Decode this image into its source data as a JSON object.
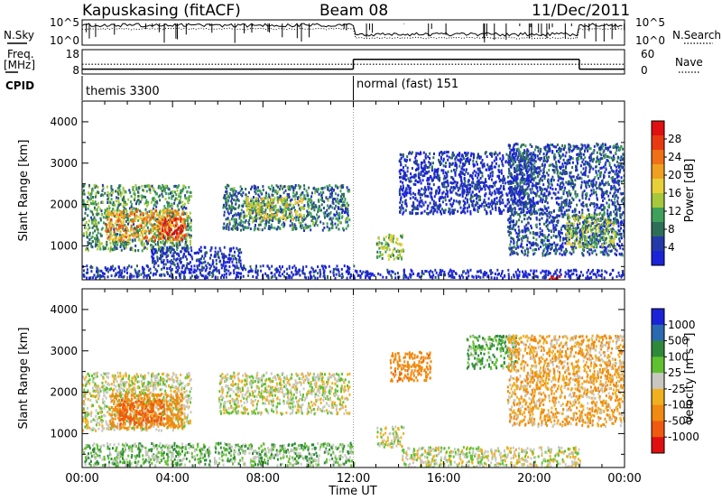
{
  "header": {
    "station": "Kapuskasing (fitACF)",
    "beam": "Beam 08",
    "date": "11/Dec/2011"
  },
  "noise_panel": {
    "left_label": "N.Sky",
    "right_label": "N.Search",
    "left_ticks": [
      "10^5",
      "10^0"
    ],
    "right_ticks": [
      "10^5",
      "10^0"
    ]
  },
  "freq_panel": {
    "left_label_1": "Freq.",
    "left_label_2": "[MHz]",
    "left_ticks": [
      "18",
      "8"
    ],
    "right_ticks": [
      "60",
      "0"
    ],
    "right_label": "Nave",
    "freq_mhz_segments": [
      {
        "start_h": 0,
        "end_h": 12,
        "value": 10.0
      },
      {
        "start_h": 12,
        "end_h": 22,
        "value": 14.0
      },
      {
        "start_h": 22,
        "end_h": 24,
        "value": 10.0
      }
    ],
    "nave_segments": [
      {
        "start_h": 0,
        "end_h": 24,
        "value": 24
      }
    ]
  },
  "cpid": {
    "label": "CPID",
    "segments": [
      {
        "start_h": 0,
        "text": "themis 3300"
      },
      {
        "start_h": 12,
        "text": "normal (fast) 151"
      }
    ]
  },
  "axes": {
    "xlabel": "Time UT",
    "x_ticks": [
      "00:00",
      "04:00",
      "08:00",
      "12:00",
      "16:00",
      "20:00",
      "00:00"
    ],
    "xlim_hours": [
      0,
      24
    ],
    "ylabel": "Slant Range [km]",
    "y_ticks": [
      "1000",
      "2000",
      "3000",
      "4000"
    ],
    "ylim_km": [
      180,
      4500
    ]
  },
  "chart_data": [
    {
      "type": "heatmap",
      "panel": "power",
      "xlabel": "Time UT",
      "ylabel": "Slant Range [km]",
      "xlim": [
        0,
        24
      ],
      "ylim": [
        180,
        4500
      ],
      "colorbar": {
        "label": "Power [dB]",
        "ticks": [
          "4",
          "8",
          "12",
          "16",
          "20",
          "24",
          "28"
        ],
        "colors": [
          "#1a23d8",
          "#243aa8",
          "#2e6e58",
          "#3ea05a",
          "#a6c83a",
          "#e8d038",
          "#f0a020",
          "#f07018",
          "#e83a10",
          "#e01010"
        ]
      },
      "regions": [
        {
          "t0": 0.0,
          "t1": 4.8,
          "r0": 900,
          "r1": 2500,
          "value": 12
        },
        {
          "t0": 1.0,
          "t1": 4.6,
          "r0": 1150,
          "r1": 1900,
          "value": 20
        },
        {
          "t0": 3.4,
          "t1": 4.4,
          "r0": 1150,
          "r1": 1700,
          "value": 26
        },
        {
          "t0": 6.2,
          "t1": 11.8,
          "r0": 1400,
          "r1": 2500,
          "value": 10
        },
        {
          "t0": 7.2,
          "t1": 9.8,
          "r0": 1650,
          "r1": 2200,
          "value": 16
        },
        {
          "t0": 0.0,
          "t1": 12.0,
          "r0": 250,
          "r1": 550,
          "value": 6
        },
        {
          "t0": 3.0,
          "t1": 7.0,
          "r0": 550,
          "r1": 1000,
          "value": 6
        },
        {
          "t0": 13.0,
          "t1": 14.2,
          "r0": 700,
          "r1": 1300,
          "value": 14
        },
        {
          "t0": 14.0,
          "t1": 20.0,
          "r0": 1800,
          "r1": 3300,
          "value": 6
        },
        {
          "t0": 18.8,
          "t1": 24.0,
          "r0": 800,
          "r1": 3500,
          "value": 8
        },
        {
          "t0": 21.4,
          "t1": 23.6,
          "r0": 1000,
          "r1": 1800,
          "value": 14
        },
        {
          "t0": 12.0,
          "t1": 24.0,
          "r0": 250,
          "r1": 450,
          "value": 5
        },
        {
          "t0": 20.6,
          "t1": 21.2,
          "r0": 200,
          "r1": 300,
          "value": 28
        }
      ]
    },
    {
      "type": "heatmap",
      "panel": "velocity",
      "xlabel": "Time UT",
      "ylabel": "Slant Range [km]",
      "xlim": [
        0,
        24
      ],
      "ylim": [
        180,
        4500
      ],
      "colorbar": {
        "label": "Velocity [m s⁻¹]",
        "ticks": [
          "1000",
          "500",
          "100",
          "25",
          "-25",
          "-100",
          "-500",
          "-1000"
        ],
        "colors": [
          "#1a23d8",
          "#2a6ab0",
          "#2e8a3a",
          "#60c030",
          "#c8c8c0",
          "#f0b020",
          "#f08a10",
          "#f05a10",
          "#e01010"
        ]
      },
      "regions": [
        {
          "t0": 0.0,
          "t1": 4.8,
          "r0": 1100,
          "r1": 2500,
          "value": 0
        },
        {
          "t0": 1.2,
          "t1": 4.4,
          "r0": 1150,
          "r1": 2000,
          "value": -150
        },
        {
          "t0": 1.6,
          "t1": 3.6,
          "r0": 1250,
          "r1": 1850,
          "value": -300
        },
        {
          "t0": 6.0,
          "t1": 11.8,
          "r0": 1500,
          "r1": 2500,
          "value": 0
        },
        {
          "t0": 0.0,
          "t1": 12.0,
          "r0": 250,
          "r1": 800,
          "value": 40
        },
        {
          "t0": 13.6,
          "t1": 15.4,
          "r0": 2300,
          "r1": 3000,
          "value": -200
        },
        {
          "t0": 17.0,
          "t1": 19.2,
          "r0": 2600,
          "r1": 3400,
          "value": 60
        },
        {
          "t0": 18.8,
          "t1": 24.0,
          "r0": 1200,
          "r1": 3400,
          "value": -60
        },
        {
          "t0": 13.0,
          "t1": 14.2,
          "r0": 700,
          "r1": 1200,
          "value": 0
        },
        {
          "t0": 14.0,
          "t1": 22.0,
          "r0": 200,
          "r1": 700,
          "value": 0
        }
      ]
    }
  ]
}
